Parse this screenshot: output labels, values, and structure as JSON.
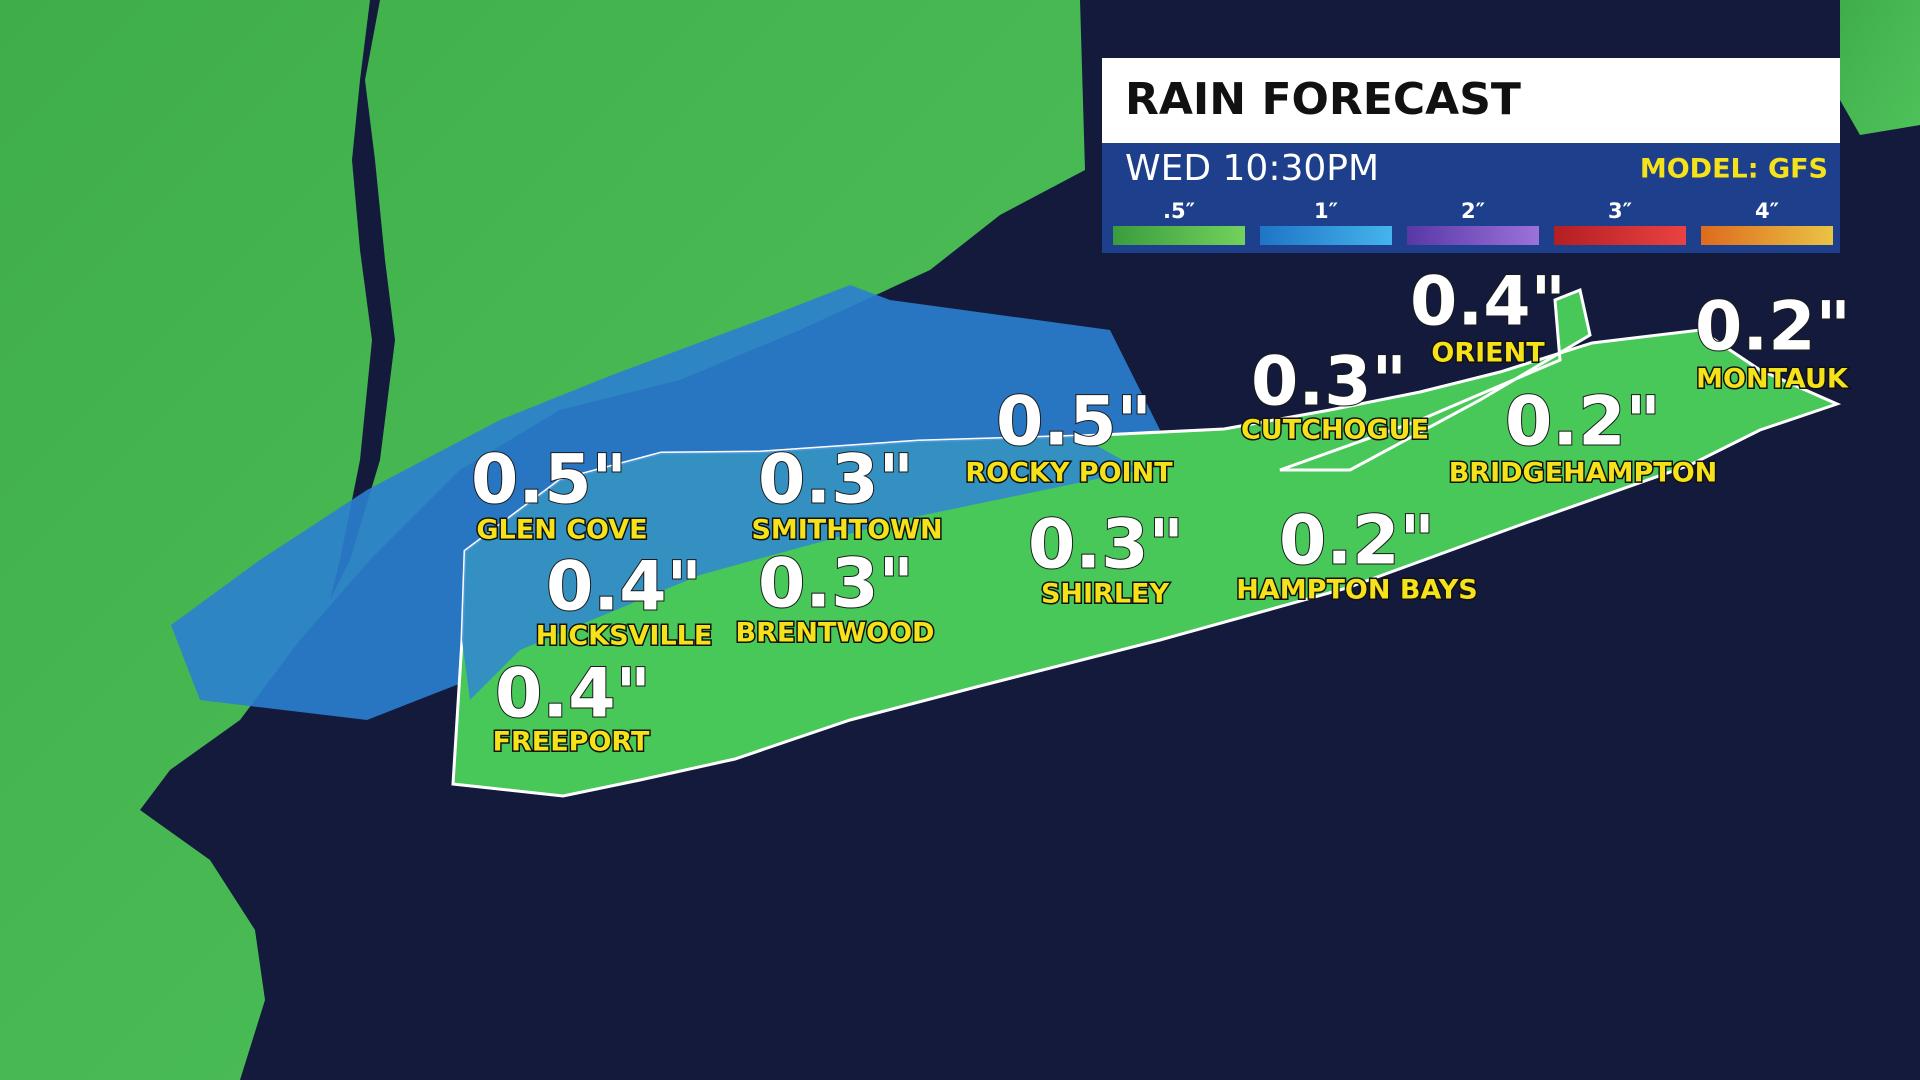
{
  "panel": {
    "title": "RAIN FORECAST",
    "time": "WED 10:30PM",
    "model": "MODEL: GFS",
    "legend": [
      {
        "label": ".5″",
        "colors": [
          "#3b9c3f",
          "#72d25c"
        ]
      },
      {
        "label": "1″",
        "colors": [
          "#1f74c6",
          "#45b4ec"
        ]
      },
      {
        "label": "2″",
        "colors": [
          "#5838a6",
          "#9c72da"
        ]
      },
      {
        "label": "3″",
        "colors": [
          "#b41e22",
          "#ea4242"
        ]
      },
      {
        "label": "4″",
        "colors": [
          "#de6a1e",
          "#e9c444"
        ]
      }
    ]
  },
  "locations": [
    {
      "name": "GLEN COVE",
      "amount": "0.5\""
    },
    {
      "name": "SMITHTOWN",
      "amount": "0.3\""
    },
    {
      "name": "ROCKY POINT",
      "amount": "0.5\""
    },
    {
      "name": "CUTCHOGUE",
      "amount": "0.3\""
    },
    {
      "name": "ORIENT",
      "amount": "0.4\""
    },
    {
      "name": "MONTAUK",
      "amount": "0.2\""
    },
    {
      "name": "BRIDGEHAMPTON",
      "amount": "0.2\""
    },
    {
      "name": "HICKSVILLE",
      "amount": "0.4\""
    },
    {
      "name": "BRENTWOOD",
      "amount": "0.3\""
    },
    {
      "name": "SHIRLEY",
      "amount": "0.3\""
    },
    {
      "name": "HAMPTON BAYS",
      "amount": "0.2\""
    },
    {
      "name": "FREEPORT",
      "amount": "0.4\""
    }
  ]
}
